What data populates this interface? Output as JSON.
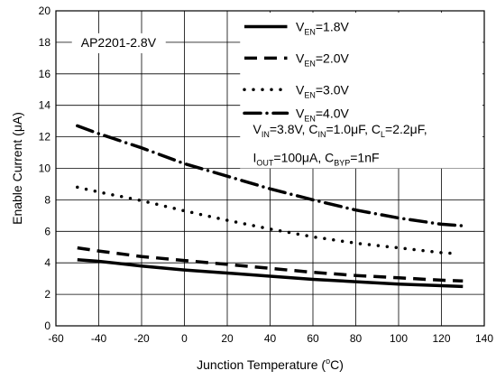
{
  "chart_data": {
    "type": "line",
    "annotation": "AP2201-2.8V",
    "xlabel": "Junction Temperature (",
    "xlabel_unit_sup": "o",
    "xlabel_unit_end": "C)",
    "ylabel": "Enable Current (μA)",
    "xlim": [
      -60,
      140
    ],
    "ylim": [
      0,
      20
    ],
    "xticks": [
      -60,
      -40,
      -20,
      0,
      20,
      40,
      60,
      80,
      100,
      120,
      140
    ],
    "yticks": [
      0,
      2,
      4,
      6,
      8,
      10,
      12,
      14,
      16,
      18,
      20
    ],
    "grid": true,
    "legend_position": "top-right",
    "series": [
      {
        "name": "V_EN=1.8V",
        "label_main": "V",
        "label_sub": "EN",
        "label_value": "=1.8V",
        "dash": "solid",
        "x": [
          -50,
          -40,
          -20,
          0,
          20,
          40,
          60,
          80,
          100,
          120,
          130
        ],
        "y": [
          4.2,
          4.1,
          3.8,
          3.55,
          3.35,
          3.15,
          2.95,
          2.8,
          2.65,
          2.55,
          2.5
        ]
      },
      {
        "name": "V_EN=2.0V",
        "label_main": "V",
        "label_sub": "EN",
        "label_value": "=2.0V",
        "dash": "dash",
        "x": [
          -50,
          -40,
          -20,
          0,
          20,
          40,
          60,
          80,
          100,
          120,
          130
        ],
        "y": [
          4.95,
          4.75,
          4.4,
          4.15,
          3.9,
          3.65,
          3.4,
          3.2,
          3.05,
          2.9,
          2.85
        ]
      },
      {
        "name": "V_EN=3.0V",
        "label_main": "V",
        "label_sub": "EN",
        "label_value": "=3.0V",
        "dash": "dot",
        "x": [
          -50,
          -40,
          -20,
          0,
          20,
          40,
          60,
          80,
          100,
          120,
          125
        ],
        "y": [
          8.8,
          8.5,
          7.95,
          7.3,
          6.7,
          6.15,
          5.65,
          5.25,
          4.95,
          4.65,
          4.6
        ]
      },
      {
        "name": "V_EN=4.0V",
        "label_main": "V",
        "label_sub": "EN",
        "label_value": "=4.0V",
        "dash": "dashdot",
        "x": [
          -50,
          -40,
          -20,
          0,
          20,
          40,
          60,
          80,
          100,
          120,
          130
        ],
        "y": [
          12.7,
          12.2,
          11.3,
          10.3,
          9.5,
          8.7,
          8.0,
          7.35,
          6.85,
          6.45,
          6.35
        ]
      }
    ],
    "conditions": {
      "line1": [
        {
          "t": "V"
        },
        {
          "t": "IN",
          "sub": true
        },
        {
          "t": "=3.8V, C"
        },
        {
          "t": "IN",
          "sub": true
        },
        {
          "t": "=1.0μF, C"
        },
        {
          "t": "L",
          "sub": true
        },
        {
          "t": "=2.2μF,"
        }
      ],
      "line2": [
        {
          "t": "I"
        },
        {
          "t": "OUT",
          "sub": true
        },
        {
          "t": "=100μA, C"
        },
        {
          "t": "BYP",
          "sub": true
        },
        {
          "t": "=1nF"
        }
      ]
    }
  }
}
